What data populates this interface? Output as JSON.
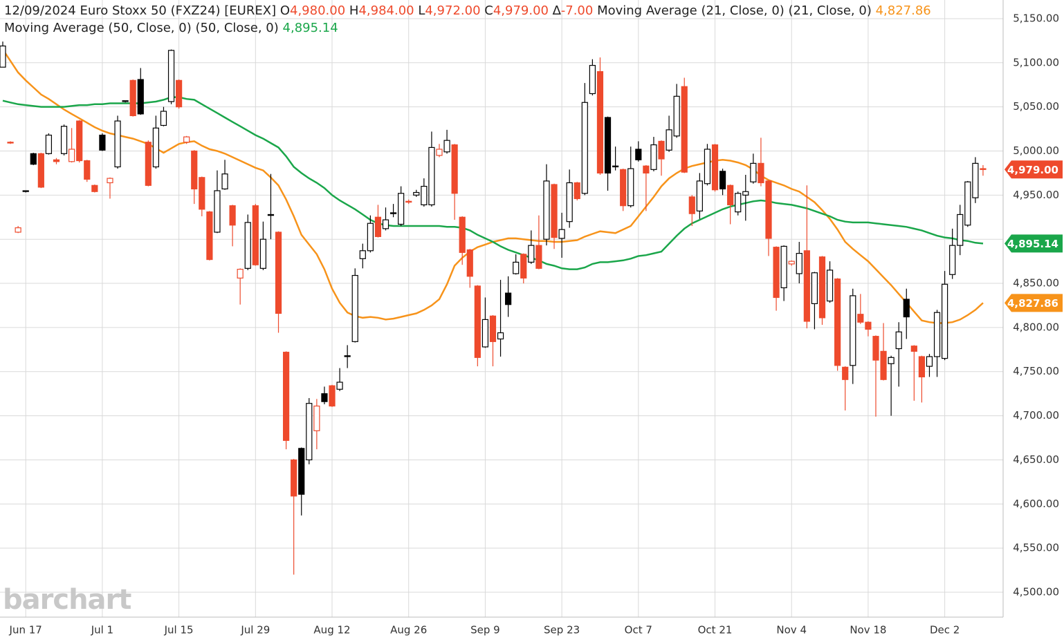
{
  "chart_data": {
    "type": "candlestick",
    "date": "12/09/2024",
    "title": "Euro Stoxx 50 (FXZ24) [EUREX]",
    "ohlc": [
      {
        "key": "O",
        "text": "4,980.00"
      },
      {
        "key": "H",
        "text": "4,984.00"
      },
      {
        "key": "L",
        "text": "4,972.00"
      },
      {
        "key": "C",
        "text": "4,979.00"
      },
      {
        "key": "∆",
        "text": "-7.00"
      }
    ],
    "watermark": "barchart",
    "up_color": "#000000",
    "down_color": "#ee4a2c",
    "grid": true,
    "categories": [
      null,
      null,
      null,
      "Jun 17",
      null,
      null,
      null,
      null,
      null,
      null,
      null,
      null,
      null,
      "Jul 1",
      null,
      null,
      null,
      null,
      null,
      null,
      null,
      null,
      null,
      "Jul 15",
      null,
      null,
      null,
      null,
      null,
      null,
      null,
      null,
      null,
      "Jul 29",
      null,
      null,
      null,
      null,
      null,
      null,
      null,
      null,
      null,
      "Aug 12",
      null,
      null,
      null,
      null,
      null,
      null,
      null,
      null,
      null,
      "Aug 26",
      null,
      null,
      null,
      null,
      null,
      null,
      null,
      null,
      null,
      "Sep 9",
      null,
      null,
      null,
      null,
      null,
      null,
      null,
      null,
      null,
      "Sep 23",
      null,
      null,
      null,
      null,
      null,
      null,
      null,
      null,
      null,
      "Oct 7",
      null,
      null,
      null,
      null,
      null,
      null,
      null,
      null,
      null,
      "Oct 21",
      null,
      null,
      null,
      null,
      null,
      null,
      null,
      null,
      null,
      "Nov 4",
      null,
      null,
      null,
      null,
      null,
      null,
      null,
      null,
      null,
      "Nov 18",
      null,
      null,
      null,
      null,
      null,
      null,
      null,
      null,
      null,
      "Dec 2",
      null,
      null,
      null,
      null,
      null
    ],
    "open": [
      5095,
      5010,
      4908,
      4954,
      4997,
      4997,
      4997,
      4990,
      4997,
      4988,
      5034,
      4989,
      4961,
      5018,
      4964,
      4982,
      5056,
      5080,
      5081,
      5010,
      4982,
      5029,
      5056,
      5080,
      5010,
      5000,
      4970,
      4931,
      4908,
      4957,
      4938,
      4856,
      4867,
      4938,
      4867,
      4928,
      4908,
      4772,
      4650,
      4663,
      4650,
      4683,
      4725,
      4734,
      4730,
      4768,
      4784,
      4878,
      4887,
      4925,
      4912,
      4930,
      4917,
      4943,
      4950,
      4939,
      4939,
      4995,
      4999,
      5007,
      4925,
      4888,
      4847,
      4778,
      4813,
      4787,
      4839,
      4861,
      4883,
      4874,
      4893,
      4900,
      4962,
      4901,
      4920,
      4964,
      4952,
      5065,
      5090,
      5038,
      4983,
      4979,
      4938,
      5002,
      4983,
      4979,
      5011,
      5001,
      5017,
      5073,
      4948,
      4932,
      4963,
      5007,
      4977,
      4961,
      4931,
      4950,
      4965,
      4986,
      4966,
      4891,
      4845,
      4872,
      4861,
      4887,
      4827,
      4880,
      4830,
      4855,
      4755,
      4757,
      4815,
      4806,
      4790,
      4773,
      4759,
      4776,
      4832,
      4779,
      4767,
      4756,
      4767,
      4765,
      4860,
      4893,
      4916,
      4947,
      4980
    ],
    "high": [
      5124,
      5011,
      4915,
      4955,
      4998,
      4998,
      5020,
      4992,
      5030,
      5026,
      5035,
      4990,
      4962,
      5020,
      4970,
      5040,
      5057,
      5081,
      5094,
      5012,
      5040,
      5050,
      5115,
      5081,
      5017,
      5001,
      4971,
      4932,
      4978,
      4990,
      4939,
      4867,
      4928,
      4940,
      4920,
      4974,
      4909,
      4773,
      4651,
      4664,
      4720,
      4719,
      4733,
      4735,
      4754,
      4780,
      4867,
      4895,
      4927,
      4939,
      4936,
      4940,
      4960,
      4945,
      4956,
      4969,
      5022,
      5008,
      5024,
      5008,
      4926,
      4889,
      4848,
      4834,
      4814,
      4854,
      4858,
      4883,
      4884,
      4910,
      4927,
      4985,
      4963,
      4930,
      4979,
      4965,
      5077,
      5104,
      5106,
      5039,
      5005,
      4980,
      5005,
      5011,
      4984,
      5016,
      5012,
      5040,
      5076,
      5083,
      4950,
      4975,
      5008,
      5008,
      4980,
      4962,
      4954,
      4973,
      4997,
      5015,
      4967,
      4892,
      4893,
      4876,
      4897,
      4961,
      4863,
      4881,
      4875,
      4856,
      4756,
      4844,
      4838,
      4807,
      4791,
      4805,
      4768,
      4806,
      4844,
      4780,
      4768,
      4770,
      4820,
      4864,
      4912,
      4939,
      4966,
      4993,
      4984
    ],
    "low": [
      5095,
      5008,
      4907,
      4953,
      4984,
      4958,
      4996,
      4985,
      4995,
      4987,
      4987,
      4965,
      4953,
      5000,
      4946,
      4980,
      5055,
      5039,
      5041,
      4960,
      4980,
      5028,
      5053,
      5048,
      5008,
      4940,
      4926,
      4876,
      4907,
      4956,
      4892,
      4826,
      4865,
      4870,
      4865,
      4900,
      4794,
      4662,
      4520,
      4587,
      4645,
      4662,
      4713,
      4710,
      4728,
      4754,
      4783,
      4867,
      4885,
      4902,
      4910,
      4925,
      4915,
      4940,
      4948,
      4937,
      4937,
      4993,
      4997,
      4922,
      4871,
      4845,
      4756,
      4777,
      4756,
      4767,
      4812,
      4860,
      4850,
      4872,
      4866,
      4893,
      4889,
      4879,
      4913,
      4944,
      4950,
      5063,
      4973,
      4955,
      4978,
      4932,
      4936,
      4988,
      4932,
      4977,
      4972,
      4999,
      5015,
      4975,
      4915,
      4923,
      4961,
      4954,
      4950,
      4917,
      4927,
      4921,
      4963,
      4960,
      4881,
      4819,
      4830,
      4870,
      4850,
      4799,
      4798,
      4803,
      4828,
      4751,
      4706,
      4736,
      4804,
      4790,
      4699,
      4740,
      4700,
      4733,
      4787,
      4717,
      4715,
      4744,
      4744,
      4763,
      4855,
      4882,
      4914,
      4941,
      4972
    ],
    "close": [
      5119,
      5009,
      4913,
      4955,
      4985,
      4959,
      5018,
      4988,
      5028,
      5002,
      4989,
      4968,
      4954,
      5001,
      4969,
      5034,
      5057,
      5040,
      5042,
      4961,
      5026,
      5045,
      5114,
      5050,
      5016,
      4957,
      4934,
      4877,
      4955,
      4974,
      4916,
      4866,
      4919,
      4871,
      4900,
      4927,
      4816,
      4672,
      4609,
      4611,
      4714,
      4711,
      4716,
      4711,
      4738,
      4767,
      4859,
      4887,
      4918,
      4903,
      4922,
      4929,
      4952,
      4942,
      4953,
      4960,
      5004,
      5002,
      5012,
      4952,
      4885,
      4858,
      4766,
      4809,
      4784,
      4794,
      4826,
      4874,
      4856,
      4893,
      4867,
      4966,
      4902,
      4911,
      4964,
      4946,
      5055,
      5097,
      4975,
      4975,
      4982,
      4938,
      4980,
      4990,
      4975,
      5007,
      4991,
      5024,
      5062,
      4976,
      4929,
      4966,
      5002,
      4956,
      4957,
      4939,
      4952,
      4954,
      4986,
      4964,
      4901,
      4834,
      4892,
      4875,
      4884,
      4807,
      4862,
      4811,
      4865,
      4757,
      4741,
      4836,
      4806,
      4798,
      4763,
      4741,
      4766,
      4795,
      4812,
      4773,
      4744,
      4767,
      4817,
      4849,
      4893,
      4928,
      4965,
      4986,
      4979
    ],
    "series": [
      {
        "name": "Moving Average (21, Close, 0)",
        "params": "(21, Close, 0)",
        "value_label": "4,827.86",
        "color": "#f7931a",
        "values": [
          5115,
          5102,
          5089,
          5080,
          5072,
          5064,
          5059,
          5053,
          5047,
          5042,
          5037,
          5032,
          5027,
          5023,
          5020,
          5018,
          5016,
          5014,
          5011,
          5008,
          5003,
          4998,
          5003,
          5008,
          5010,
          5011,
          5006,
          5002,
          5000,
          4997,
          4993,
          4989,
          4985,
          4981,
          4978,
          4970,
          4961,
          4945,
          4926,
          4905,
          4894,
          4883,
          4866,
          4844,
          4828,
          4817,
          4813,
          4811,
          4812,
          4811,
          4809,
          4810,
          4812,
          4814,
          4816,
          4820,
          4825,
          4832,
          4849,
          4870,
          4879,
          4886,
          4891,
          4894,
          4897,
          4899,
          4901,
          4901,
          4900,
          4899,
          4898,
          4898,
          4897,
          4897,
          4898,
          4899,
          4903,
          4906,
          4909,
          4908,
          4907,
          4911,
          4915,
          4926,
          4937,
          4948,
          4960,
          4969,
          4975,
          4980,
          4983,
          4985,
          4987,
          4989,
          4990,
          4989,
          4987,
          4984,
          4979,
          4972,
          4967,
          4964,
          4961,
          4957,
          4954,
          4948,
          4942,
          4933,
          4923,
          4911,
          4897,
          4889,
          4882,
          4875,
          4866,
          4857,
          4848,
          4838,
          4828,
          4818,
          4808,
          4806,
          4805,
          4805,
          4806,
          4809,
          4814,
          4820,
          4827.86
        ]
      },
      {
        "name": "Moving Average (50, Close, 0)",
        "params": "(50, Close, 0)",
        "value_label": "4,895.14",
        "color": "#1aa64a",
        "values": [
          5057,
          5055,
          5053,
          5052,
          5051,
          5050,
          5050,
          5050,
          5050,
          5051,
          5052,
          5052,
          5053,
          5053,
          5054,
          5054,
          5054,
          5054,
          5054,
          5055,
          5056,
          5058,
          5061,
          5061,
          5059,
          5058,
          5053,
          5048,
          5043,
          5038,
          5033,
          5028,
          5023,
          5018,
          5014,
          5009,
          5004,
          4994,
          4982,
          4975,
          4969,
          4964,
          4958,
          4950,
          4944,
          4939,
          4934,
          4928,
          4922,
          4918,
          4916,
          4915,
          4915,
          4915,
          4915,
          4915,
          4915,
          4915,
          4914,
          4914,
          4913,
          4910,
          4905,
          4901,
          4897,
          4892,
          4888,
          4885,
          4882,
          4879,
          4876,
          4872,
          4870,
          4867,
          4866,
          4866,
          4868,
          4872,
          4874,
          4874,
          4875,
          4876,
          4878,
          4881,
          4882,
          4884,
          4886,
          4895,
          4904,
          4912,
          4918,
          4922,
          4926,
          4930,
          4934,
          4937,
          4939,
          4941,
          4943,
          4944,
          4943,
          4941,
          4940,
          4939,
          4937,
          4935,
          4932,
          4929,
          4926,
          4922,
          4920,
          4919,
          4919,
          4919,
          4918,
          4917,
          4916,
          4915,
          4914,
          4912,
          4910,
          4907,
          4904,
          4902,
          4901,
          4899,
          4898,
          4896,
          4895.14
        ]
      }
    ],
    "ylim": [
      4471.8,
      5171.1
    ],
    "yticks": [
      {
        "value": 4500,
        "label": "4,500.00"
      },
      {
        "value": 4550,
        "label": "4,550.00"
      },
      {
        "value": 4600,
        "label": "4,600.00"
      },
      {
        "value": 4650,
        "label": "4,650.00"
      },
      {
        "value": 4700,
        "label": "4,700.00"
      },
      {
        "value": 4750,
        "label": "4,750.00"
      },
      {
        "value": 4800,
        "label": "4,800.00"
      },
      {
        "value": 4850,
        "label": "4,850.00"
      },
      {
        "value": 4900,
        "label": "4,900.00"
      },
      {
        "value": 4950,
        "label": "4,950.00"
      },
      {
        "value": 5000,
        "label": "5,000.00"
      },
      {
        "value": 5050,
        "label": "5,050.00"
      },
      {
        "value": 5100,
        "label": "5,100.00"
      },
      {
        "value": 5150,
        "label": "5,150.00"
      }
    ]
  }
}
